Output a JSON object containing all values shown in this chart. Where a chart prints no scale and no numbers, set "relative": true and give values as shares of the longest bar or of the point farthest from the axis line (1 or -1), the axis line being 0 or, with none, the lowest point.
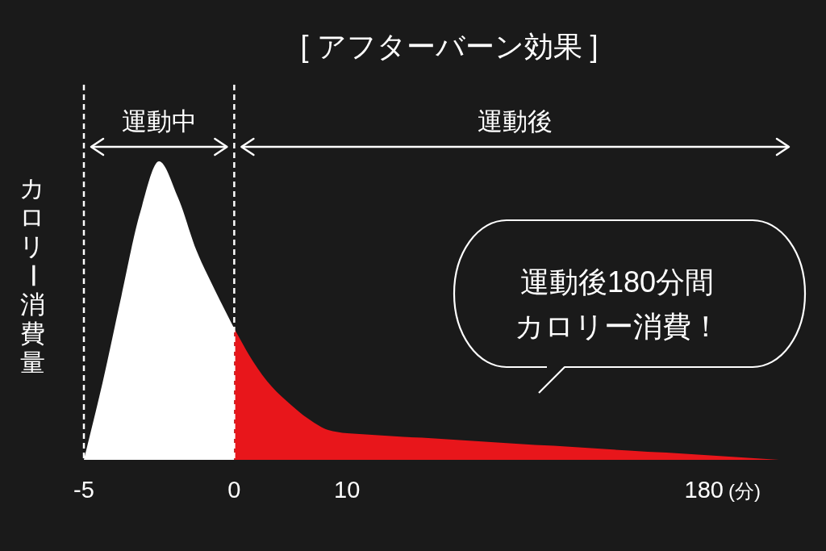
{
  "chart_data": {
    "type": "area",
    "title": "[ アフターバーン効果 ]",
    "xlabel": "(分)",
    "ylabel": "カロリー消費量",
    "relative": true,
    "categories": [
      "-5",
      null,
      null,
      null,
      null,
      null,
      null,
      null,
      "0",
      null,
      null,
      null,
      null,
      null,
      "10",
      null,
      null,
      null,
      null,
      null,
      null,
      null,
      null,
      null,
      null,
      null,
      null,
      null,
      null,
      null,
      null,
      null,
      null,
      "180",
      null,
      null,
      null,
      null
    ],
    "series": [
      {
        "color": "#ffffff",
        "values": [
          0,
          0.26,
          0.55,
          0.83,
          1,
          0.88,
          0.7,
          0.565,
          0.44,
          null,
          null,
          null,
          null,
          null,
          null,
          null,
          null,
          null,
          null,
          null,
          null,
          null,
          null,
          null,
          null,
          null,
          null,
          null,
          null,
          null,
          null,
          null,
          null,
          null,
          null,
          null,
          null,
          null
        ]
      },
      {
        "color": "#e8161b",
        "values": [
          null,
          null,
          null,
          null,
          null,
          null,
          null,
          null,
          0.44,
          0.33,
          0.245,
          0.185,
          0.135,
          0.1,
          0.089,
          0.085,
          0.081,
          0.077,
          0.074,
          0.07,
          0.066,
          0.062,
          0.058,
          0.054,
          0.05,
          0.047,
          0.043,
          0.039,
          0.035,
          0.031,
          0.027,
          0.024,
          0.02,
          0.016,
          0.012,
          0.008,
          0.004,
          0
        ]
      }
    ],
    "ref_lines": [
      {
        "axis": "x",
        "value": "-5",
        "color": "#ffffff",
        "line_style": "dashed"
      },
      {
        "axis": "x",
        "value": "0",
        "color": "#ffffff",
        "line_style": "dashed"
      }
    ],
    "annotations": [
      "運動中",
      "運動後",
      "運動後180分間カロリー消費！"
    ]
  }
}
